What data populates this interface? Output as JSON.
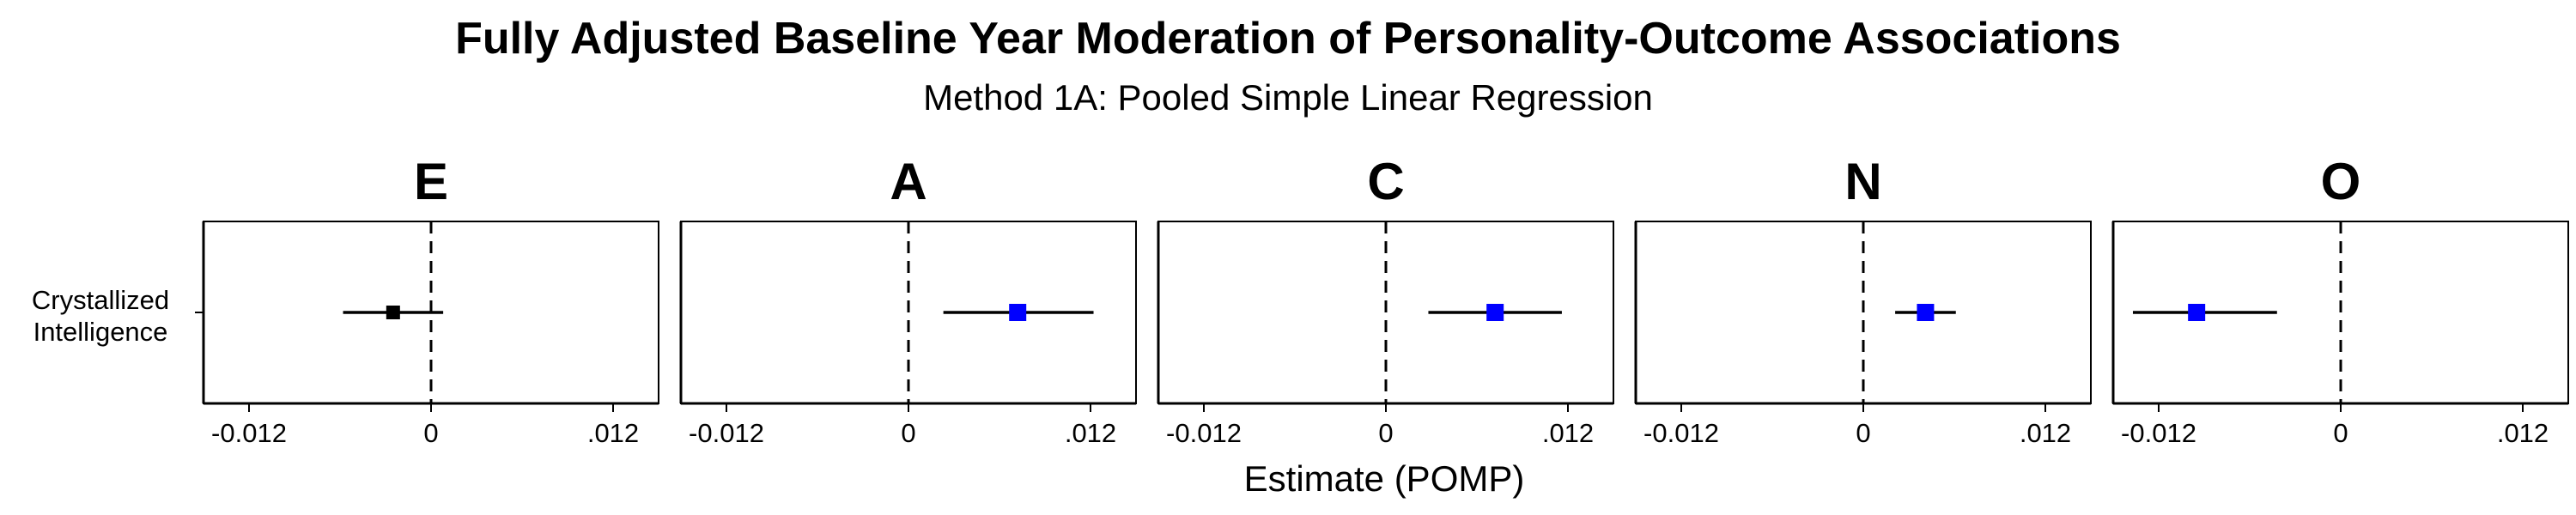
{
  "chart_data": {
    "type": "forest",
    "title": "Fully Adjusted Baseline Year Moderation of Personality-Outcome Associations",
    "subtitle": "Method 1A: Pooled Simple Linear Regression",
    "xlabel": "Estimate (POMP)",
    "xlim": [
      -0.015,
      0.015
    ],
    "x_ticks": [
      -0.012,
      0,
      0.012
    ],
    "x_tick_labels": [
      "-0.012",
      "0",
      ".012"
    ],
    "reference_line": 0,
    "y_categories": [
      [
        "Crystallized",
        "Intelligence"
      ]
    ],
    "colors": {
      "significant": "#0000ff",
      "nonsignificant": "#000000"
    },
    "panels": [
      {
        "trait": "E",
        "estimate": -0.0025,
        "lower": -0.0058,
        "upper": 0.0008,
        "significant": false
      },
      {
        "trait": "A",
        "estimate": 0.0072,
        "lower": 0.0023,
        "upper": 0.0122,
        "significant": true
      },
      {
        "trait": "C",
        "estimate": 0.0072,
        "lower": 0.0028,
        "upper": 0.0116,
        "significant": true
      },
      {
        "trait": "N",
        "estimate": 0.0041,
        "lower": 0.0021,
        "upper": 0.0061,
        "significant": true
      },
      {
        "trait": "O",
        "estimate": -0.0095,
        "lower": -0.0137,
        "upper": -0.0042,
        "significant": true
      }
    ]
  }
}
